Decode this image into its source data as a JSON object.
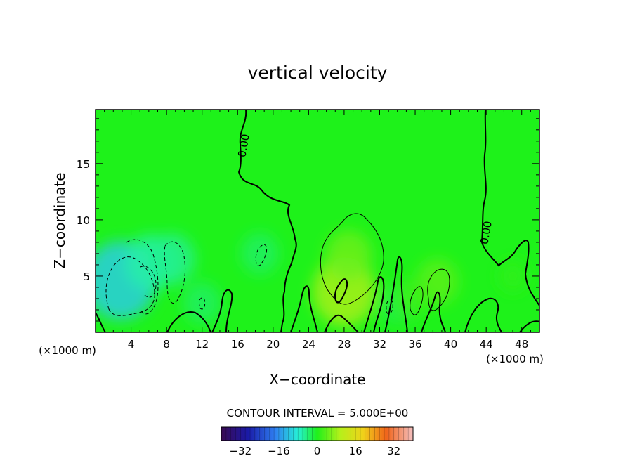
{
  "chart_data": {
    "type": "heatmap",
    "title": "vertical velocity",
    "xlabel": "X−coordinate",
    "ylabel": "Z−coordinate",
    "x_unit_left": "(×1000 m)",
    "x_unit_right": "(×1000 m)",
    "xlim": [
      0,
      50
    ],
    "ylim": [
      0,
      19.8
    ],
    "x_ticks": [
      4,
      8,
      12,
      16,
      20,
      24,
      28,
      32,
      36,
      40,
      44,
      48
    ],
    "x_tick_labels": [
      "4",
      "8",
      "12",
      "16",
      "20",
      "24",
      "28",
      "32",
      "36",
      "40",
      "44",
      "48"
    ],
    "y_ticks": [
      5,
      10,
      15
    ],
    "y_tick_labels": [
      "5",
      "10",
      "15"
    ],
    "contour_interval_text": "CONTOUR INTERVAL = 5.000E+00",
    "contour_labels": [
      "0.00",
      "0.00"
    ],
    "colorbar": {
      "range": [
        -40,
        40
      ],
      "ticks": [
        -32,
        -16,
        0,
        16,
        32
      ],
      "tick_labels": [
        "−32",
        "−16",
        "0",
        "16",
        "32"
      ]
    },
    "field_samples": [
      {
        "x": 2.8,
        "z": 4.6,
        "w": -11
      },
      {
        "x": 6.2,
        "z": 6.2,
        "w": -6
      },
      {
        "x": 8.6,
        "z": 6.5,
        "w": -5
      },
      {
        "x": 18.5,
        "z": 7.0,
        "w": -3
      },
      {
        "x": 12.0,
        "z": 2.6,
        "w": -3
      },
      {
        "x": 33.8,
        "z": 2.4,
        "w": -2
      },
      {
        "x": 28.0,
        "z": 3.6,
        "w": 9
      },
      {
        "x": 28.5,
        "z": 6.8,
        "w": 5
      },
      {
        "x": 38.5,
        "z": 4.5,
        "w": 4
      },
      {
        "x": 35.5,
        "z": 3.0,
        "w": 2
      },
      {
        "x": 47.0,
        "z": 5.0,
        "w": 1
      }
    ]
  }
}
